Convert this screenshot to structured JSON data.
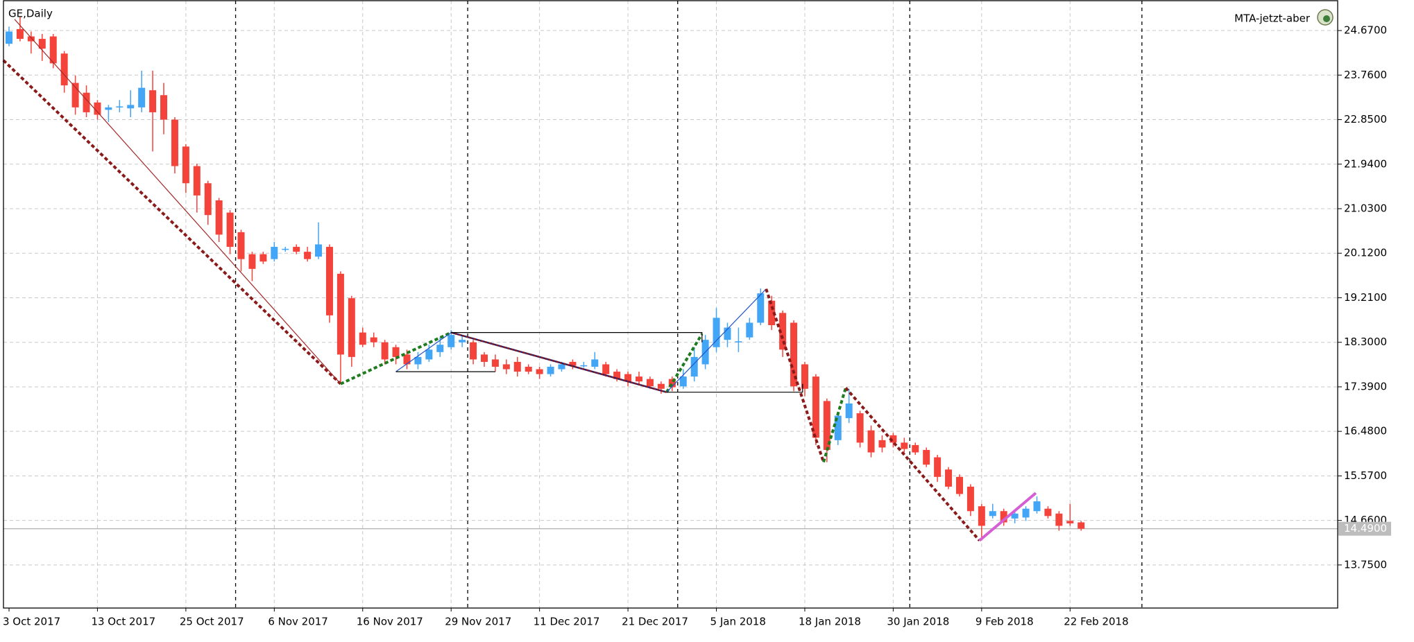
{
  "chart_data": {
    "type": "candlestick",
    "title": "GE,Daily",
    "indicator_label": "MTA-jetzt-aber",
    "categories": [
      "3 Oct 2017",
      null,
      null,
      null,
      null,
      null,
      null,
      null,
      "13 Oct 2017",
      null,
      null,
      null,
      null,
      null,
      null,
      null,
      "25 Oct 2017",
      null,
      null,
      null,
      null,
      null,
      null,
      null,
      "6 Nov 2017",
      null,
      null,
      null,
      null,
      null,
      null,
      null,
      "16 Nov 2017",
      null,
      null,
      null,
      null,
      null,
      null,
      null,
      "29 Nov 2017",
      null,
      null,
      null,
      null,
      null,
      null,
      null,
      "11 Dec 2017",
      null,
      null,
      null,
      null,
      null,
      null,
      null,
      "21 Dec 2017",
      null,
      null,
      null,
      null,
      null,
      null,
      null,
      "5 Jan 2018",
      null,
      null,
      null,
      null,
      null,
      null,
      null,
      "18 Jan 2018",
      null,
      null,
      null,
      null,
      null,
      null,
      null,
      "30 Jan 2018",
      null,
      null,
      null,
      null,
      null,
      null,
      null,
      "9 Feb 2018",
      null,
      null,
      null,
      null,
      null,
      null,
      null,
      "22 Feb 2018",
      null
    ],
    "open": [
      24.4,
      24.7,
      24.55,
      24.5,
      24.55,
      24.2,
      23.6,
      23.4,
      23.2,
      23.05,
      23.1,
      23.08,
      23.1,
      23.45,
      23.35,
      22.85,
      22.3,
      21.9,
      21.55,
      21.2,
      20.95,
      20.55,
      20.1,
      20.1,
      20.0,
      20.2,
      20.25,
      20.15,
      20.05,
      20.25,
      19.7,
      19.2,
      18.5,
      18.4,
      18.3,
      18.2,
      18.05,
      17.85,
      17.95,
      18.1,
      18.2,
      18.3,
      18.3,
      18.05,
      17.95,
      17.85,
      17.9,
      17.8,
      17.75,
      17.65,
      17.75,
      17.9,
      17.82,
      17.8,
      17.85,
      17.7,
      17.65,
      17.6,
      17.55,
      17.45,
      17.55,
      17.4,
      17.6,
      17.85,
      18.2,
      18.35,
      18.3,
      18.4,
      18.7,
      19.15,
      18.9,
      18.7,
      17.85,
      17.6,
      17.1,
      16.3,
      16.75,
      16.85,
      16.5,
      16.3,
      16.4,
      16.25,
      16.2,
      16.1,
      15.95,
      15.7,
      15.55,
      15.35,
      14.95,
      14.75,
      14.85,
      14.7,
      14.72,
      14.85,
      14.9,
      14.8,
      14.65,
      14.62
    ],
    "high": [
      24.75,
      24.95,
      24.65,
      24.6,
      24.6,
      24.25,
      23.75,
      23.55,
      23.25,
      23.15,
      23.25,
      23.45,
      23.85,
      23.85,
      23.6,
      22.9,
      22.35,
      21.95,
      21.6,
      21.25,
      21.0,
      20.6,
      20.15,
      20.15,
      20.35,
      20.25,
      20.3,
      20.25,
      20.75,
      20.3,
      19.75,
      19.25,
      18.6,
      18.5,
      18.35,
      18.25,
      18.15,
      18.1,
      18.25,
      18.4,
      18.55,
      18.45,
      18.35,
      18.1,
      18.05,
      17.95,
      18.0,
      17.85,
      17.8,
      17.85,
      17.9,
      17.95,
      17.9,
      18.1,
      17.9,
      17.75,
      17.7,
      17.7,
      17.6,
      17.5,
      17.6,
      17.75,
      18.2,
      18.45,
      19.0,
      18.7,
      18.6,
      18.8,
      19.4,
      19.25,
      18.95,
      18.75,
      17.9,
      17.65,
      17.15,
      16.85,
      17.35,
      16.9,
      16.6,
      16.4,
      16.45,
      16.35,
      16.25,
      16.15,
      16.0,
      15.75,
      15.6,
      15.4,
      15.0,
      15.0,
      14.9,
      14.85,
      14.95,
      15.15,
      14.95,
      14.85,
      15.0,
      14.65
    ],
    "low": [
      24.35,
      24.45,
      24.2,
      24.05,
      23.9,
      23.4,
      22.95,
      22.9,
      22.85,
      22.8,
      23.0,
      22.9,
      23.0,
      22.2,
      22.55,
      21.75,
      21.35,
      20.95,
      20.7,
      20.35,
      20.1,
      19.75,
      19.55,
      19.9,
      19.95,
      20.15,
      20.1,
      19.95,
      20.0,
      18.7,
      17.45,
      17.8,
      18.2,
      18.2,
      17.85,
      17.85,
      17.75,
      17.75,
      17.9,
      18.0,
      18.15,
      18.2,
      17.85,
      17.8,
      17.7,
      17.65,
      17.6,
      17.65,
      17.55,
      17.6,
      17.7,
      17.75,
      17.78,
      17.75,
      17.6,
      17.5,
      17.4,
      17.45,
      17.35,
      17.25,
      17.3,
      17.35,
      17.5,
      17.75,
      18.1,
      18.2,
      18.1,
      18.35,
      18.65,
      18.55,
      18.0,
      17.3,
      17.2,
      16.2,
      15.85,
      16.2,
      16.65,
      16.15,
      15.95,
      16.05,
      16.15,
      16.05,
      16.0,
      15.75,
      15.45,
      15.3,
      15.15,
      14.75,
      14.25,
      14.7,
      14.55,
      14.6,
      14.65,
      14.8,
      14.7,
      14.45,
      14.55,
      14.45
    ],
    "close": [
      24.65,
      24.5,
      24.45,
      24.3,
      24.0,
      23.55,
      23.1,
      23.0,
      22.95,
      23.1,
      23.12,
      23.15,
      23.5,
      23.0,
      22.85,
      21.9,
      21.55,
      21.3,
      20.9,
      20.5,
      20.25,
      20.0,
      19.8,
      19.95,
      20.25,
      20.21,
      20.15,
      20.0,
      20.3,
      18.85,
      18.05,
      18.0,
      18.25,
      18.3,
      17.95,
      18.0,
      17.85,
      18.0,
      18.15,
      18.25,
      18.45,
      18.35,
      17.95,
      17.9,
      17.8,
      17.75,
      17.7,
      17.7,
      17.65,
      17.8,
      17.85,
      17.82,
      17.83,
      17.95,
      17.65,
      17.55,
      17.5,
      17.5,
      17.4,
      17.35,
      17.38,
      17.6,
      18.0,
      18.35,
      18.8,
      18.6,
      18.32,
      18.7,
      19.3,
      18.65,
      18.15,
      17.4,
      17.35,
      16.35,
      16.1,
      16.8,
      17.05,
      16.25,
      16.05,
      16.15,
      16.25,
      16.12,
      16.05,
      15.8,
      15.55,
      15.35,
      15.2,
      14.85,
      14.55,
      14.85,
      14.62,
      14.8,
      14.9,
      15.05,
      14.75,
      14.55,
      14.6,
      14.49
    ],
    "up_color": "#42a5f5",
    "down_color": "#f4433a",
    "ylim": [
      12.87,
      25.28
    ],
    "yticks": [
      {
        "value": 24.67,
        "label": "24.6700"
      },
      {
        "value": 23.76,
        "label": "23.7600"
      },
      {
        "value": 22.85,
        "label": "22.8500"
      },
      {
        "value": 21.94,
        "label": "21.9400"
      },
      {
        "value": 21.03,
        "label": "21.0300"
      },
      {
        "value": 20.12,
        "label": "20.1200"
      },
      {
        "value": 19.21,
        "label": "19.2100"
      },
      {
        "value": 18.3,
        "label": "18.3000"
      },
      {
        "value": 17.39,
        "label": "17.3900"
      },
      {
        "value": 16.48,
        "label": "16.4800"
      },
      {
        "value": 15.57,
        "label": "15.5700"
      },
      {
        "value": 14.66,
        "label": "14.6600"
      },
      {
        "value": 13.75,
        "label": "13.7500"
      }
    ],
    "grid": true,
    "current_price": {
      "value": 14.49,
      "label": "14.4900"
    },
    "separators": [
      20.5,
      41.5,
      60.5,
      81.5,
      102.5
    ],
    "overlays": [
      {
        "color": "#8b1a1a",
        "width": 4,
        "dash": true,
        "x": [
          -0.5,
          30
        ],
        "y": [
          24.06,
          17.45
        ]
      },
      {
        "color": "#a52a2a",
        "width": 1.2,
        "dash": false,
        "x": [
          0.5,
          30
        ],
        "y": [
          24.9,
          17.45
        ]
      },
      {
        "color": "#1e7b1e",
        "width": 4,
        "dash": true,
        "x": [
          30,
          40
        ],
        "y": [
          17.45,
          18.5
        ]
      },
      {
        "color": "#2255cc",
        "width": 1.2,
        "dash": false,
        "x": [
          35,
          40
        ],
        "y": [
          17.7,
          18.5
        ]
      },
      {
        "color": "#1a237e",
        "width": 2.5,
        "dash": false,
        "x": [
          40,
          59.5
        ],
        "y": [
          18.5,
          17.28
        ]
      },
      {
        "color": "#8b1a1a",
        "width": 2.5,
        "dash": true,
        "x": [
          40,
          59.5
        ],
        "y": [
          18.5,
          17.28
        ]
      },
      {
        "color": "#1e7b1e",
        "width": 4,
        "dash": true,
        "x": [
          59.5,
          62.7
        ],
        "y": [
          17.28,
          18.47
        ]
      },
      {
        "color": "#2255cc",
        "width": 1.2,
        "dash": false,
        "x": [
          59.5,
          68.5
        ],
        "y": [
          17.28,
          19.39
        ]
      },
      {
        "color": "#8b1a1a",
        "width": 4,
        "dash": true,
        "x": [
          68.5,
          73.7
        ],
        "y": [
          19.39,
          15.85
        ]
      },
      {
        "color": "#1e7b1e",
        "width": 4,
        "dash": true,
        "x": [
          73.7,
          75.7
        ],
        "y": [
          15.85,
          17.37
        ]
      },
      {
        "color": "#8b1a1a",
        "width": 4,
        "dash": true,
        "x": [
          75.7,
          87.8
        ],
        "y": [
          17.37,
          14.25
        ]
      },
      {
        "color": "#d45fd4",
        "width": 4,
        "dash": false,
        "x": [
          87.8,
          92.9
        ],
        "y": [
          14.25,
          15.22
        ]
      },
      {
        "color": "#000000",
        "width": 1.2,
        "dash": false,
        "x": [
          35,
          44
        ],
        "y": [
          17.7,
          17.7
        ]
      },
      {
        "color": "#000000",
        "width": 1.2,
        "dash": false,
        "x": [
          40,
          62.7,
          62.7
        ],
        "y": [
          18.5,
          18.5,
          18.3
        ]
      },
      {
        "color": "#000000",
        "width": 1.2,
        "dash": false,
        "x": [
          59.5,
          71.8,
          71.8
        ],
        "y": [
          17.28,
          17.28,
          17.45
        ]
      }
    ]
  }
}
